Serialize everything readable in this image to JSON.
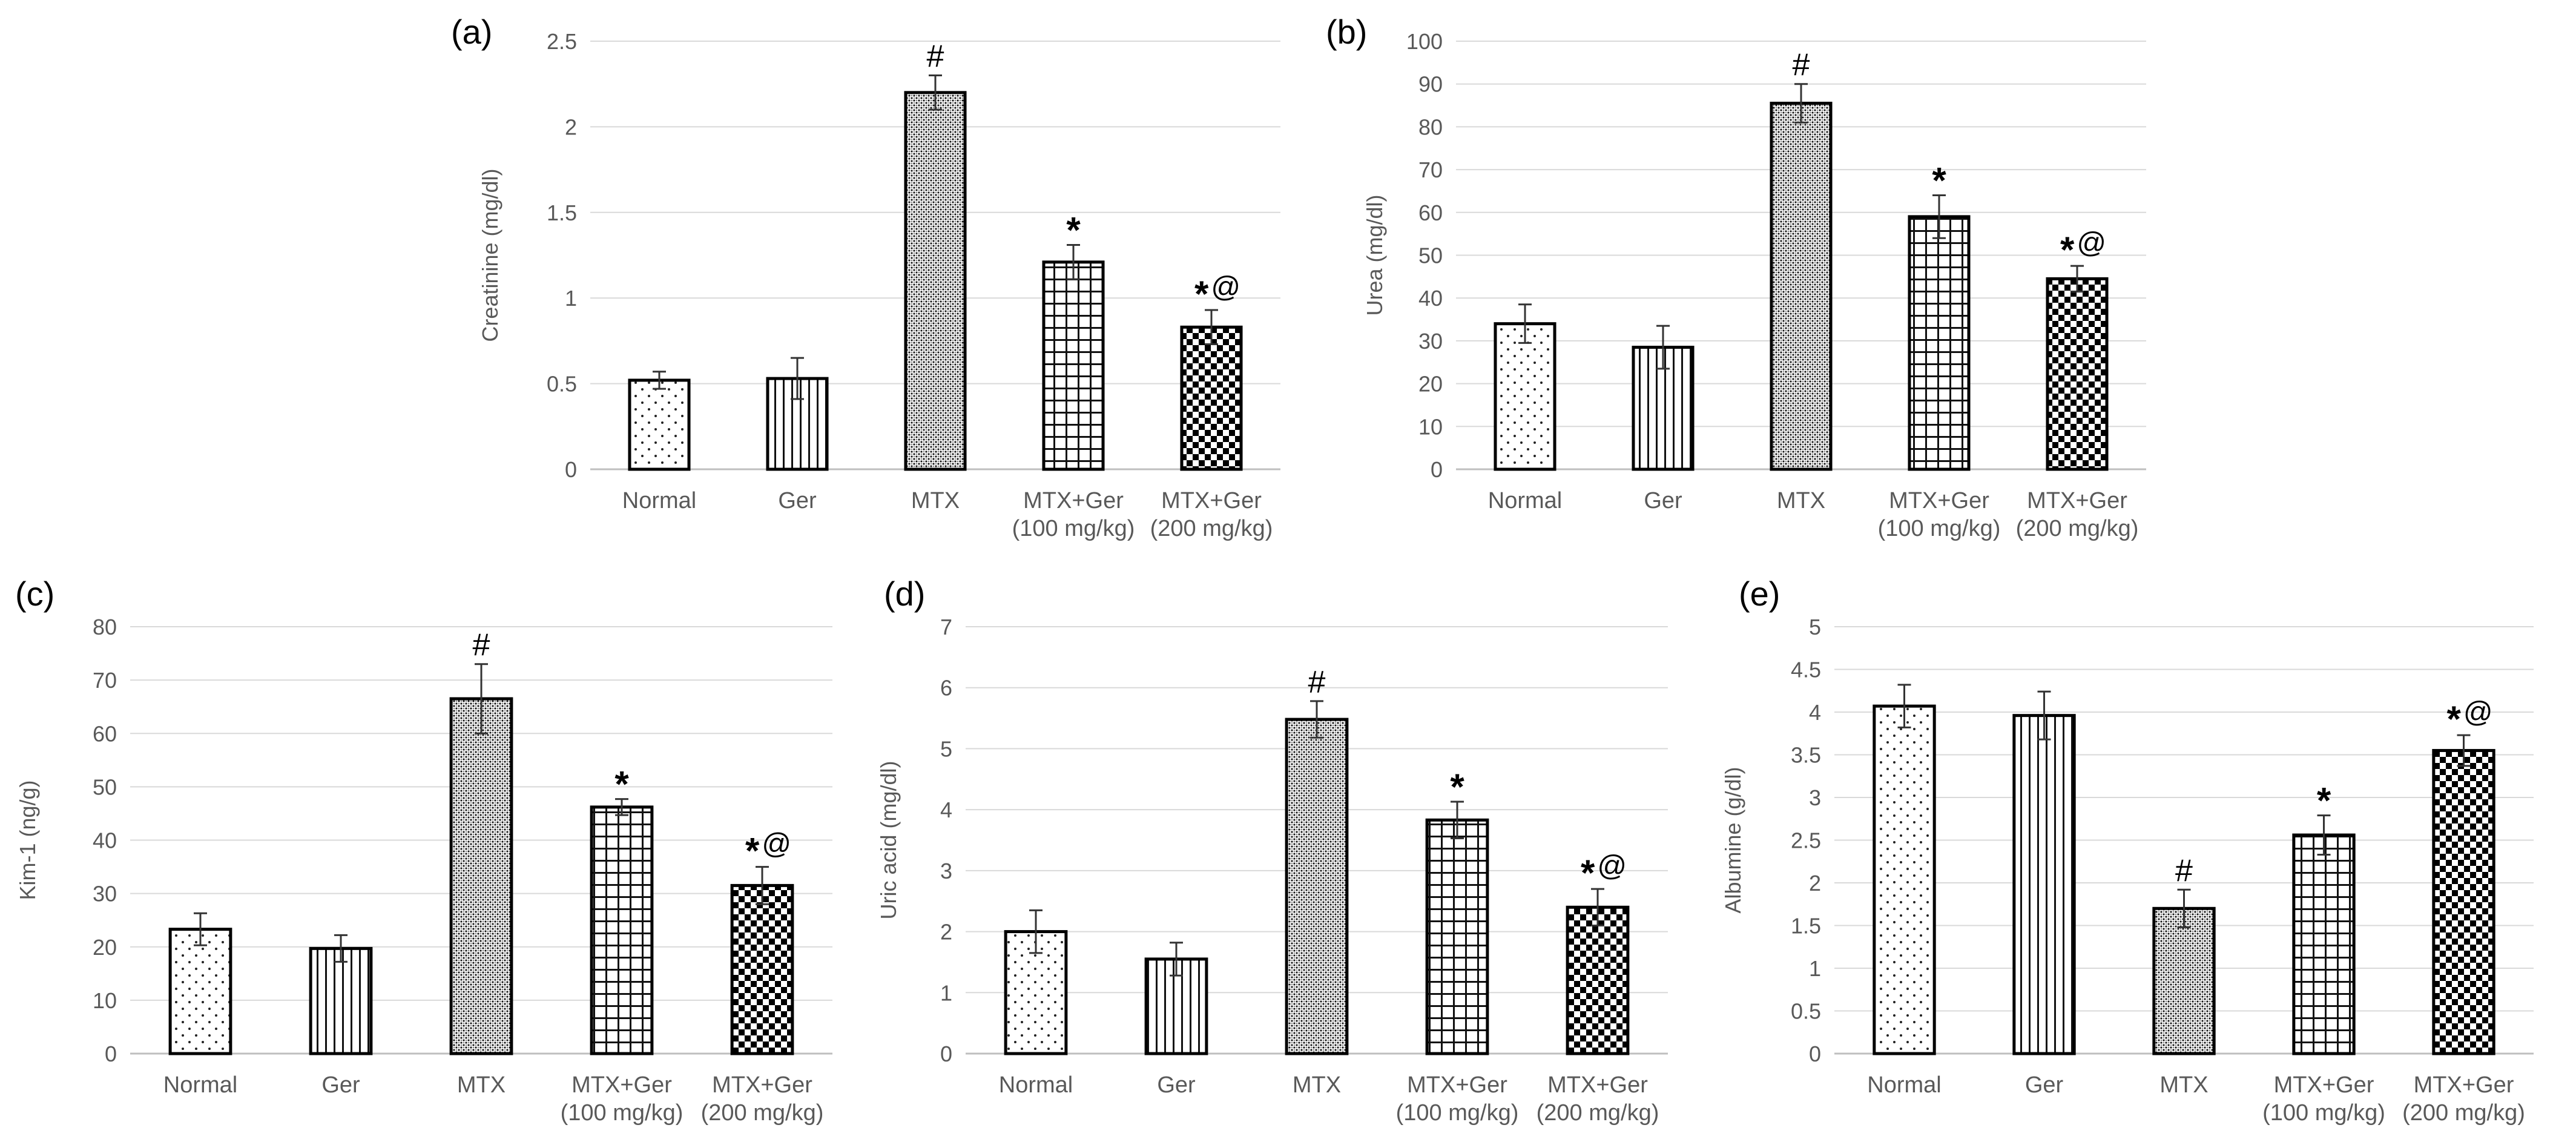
{
  "figure": {
    "description": "Five bar charts of kidney function markers across treatment groups"
  },
  "chart_data": [
    {
      "id": "a",
      "panel_label": "(a)",
      "type": "bar",
      "ylabel": "Creatinine (mg/dl)",
      "ylim": [
        0,
        2.5
      ],
      "yticks": [
        "0",
        "0.5",
        "1",
        "1.5",
        "2",
        "2.5"
      ],
      "categories": [
        [
          "Normal"
        ],
        [
          "Ger"
        ],
        [
          "MTX"
        ],
        [
          "MTX+Ger",
          "(100 mg/kg)"
        ],
        [
          "MTX+Ger",
          "(200 mg/kg)"
        ]
      ],
      "values": [
        0.52,
        0.53,
        2.2,
        1.21,
        0.83
      ],
      "errors": [
        0.05,
        0.12,
        0.1,
        0.1,
        0.1
      ],
      "annotations": [
        "",
        "",
        "#",
        "*",
        "*@"
      ],
      "grid": true
    },
    {
      "id": "b",
      "panel_label": "(b)",
      "type": "bar",
      "ylabel": "Urea (mg/dl)",
      "ylim": [
        0,
        100
      ],
      "yticks": [
        "0",
        "10",
        "20",
        "30",
        "40",
        "50",
        "60",
        "70",
        "80",
        "90",
        "100"
      ],
      "categories": [
        [
          "Normal"
        ],
        [
          "Ger"
        ],
        [
          "MTX"
        ],
        [
          "MTX+Ger",
          "(100 mg/kg)"
        ],
        [
          "MTX+Ger",
          "(200 mg/kg)"
        ]
      ],
      "values": [
        34,
        28.5,
        85.5,
        59,
        44.5
      ],
      "errors": [
        4.5,
        5,
        4.5,
        5,
        3
      ],
      "annotations": [
        "",
        "",
        "#",
        "*",
        "*@"
      ],
      "grid": true
    },
    {
      "id": "c",
      "panel_label": "(c)",
      "type": "bar",
      "ylabel": "Kim-1 (ng/g)",
      "ylim": [
        0,
        80
      ],
      "yticks": [
        "0",
        "10",
        "20",
        "30",
        "40",
        "50",
        "60",
        "70",
        "80"
      ],
      "categories": [
        [
          "Normal"
        ],
        [
          "Ger"
        ],
        [
          "MTX"
        ],
        [
          "MTX+Ger",
          "(100 mg/kg)"
        ],
        [
          "MTX+Ger",
          "(200 mg/kg)"
        ]
      ],
      "values": [
        23.3,
        19.7,
        66.5,
        46.2,
        31.5
      ],
      "errors": [
        3,
        2.5,
        6.5,
        1.5,
        3.5
      ],
      "annotations": [
        "",
        "",
        "#",
        "*",
        "*@"
      ],
      "grid": true
    },
    {
      "id": "d",
      "panel_label": "(d)",
      "type": "bar",
      "ylabel": "Uric acid (mg/dl)",
      "ylim": [
        0,
        7
      ],
      "yticks": [
        "0",
        "1",
        "2",
        "3",
        "4",
        "5",
        "6",
        "7"
      ],
      "categories": [
        [
          "Normal"
        ],
        [
          "Ger"
        ],
        [
          "MTX"
        ],
        [
          "MTX+Ger",
          "(100 mg/kg)"
        ],
        [
          "MTX+Ger",
          "(200 mg/kg)"
        ]
      ],
      "values": [
        2,
        1.55,
        5.48,
        3.83,
        2.4
      ],
      "errors": [
        0.35,
        0.27,
        0.3,
        0.3,
        0.3
      ],
      "annotations": [
        "",
        "",
        "#",
        "*",
        "*@"
      ],
      "grid": true
    },
    {
      "id": "e",
      "panel_label": "(e)",
      "type": "bar",
      "ylabel": "Albumine (g/dl)",
      "ylim": [
        0,
        5
      ],
      "yticks": [
        "0",
        "0.5",
        "1",
        "1.5",
        "2",
        "2.5",
        "3",
        "3.5",
        "4",
        "4.5",
        "5"
      ],
      "categories": [
        [
          "Normal"
        ],
        [
          "Ger"
        ],
        [
          "MTX"
        ],
        [
          "MTX+Ger",
          "(100 mg/kg)"
        ],
        [
          "MTX+Ger",
          "(200 mg/kg)"
        ]
      ],
      "values": [
        4.07,
        3.96,
        1.7,
        2.56,
        3.55
      ],
      "errors": [
        0.25,
        0.28,
        0.22,
        0.23,
        0.18
      ],
      "annotations": [
        "",
        "",
        "#",
        "*",
        "*@"
      ],
      "grid": true
    }
  ]
}
